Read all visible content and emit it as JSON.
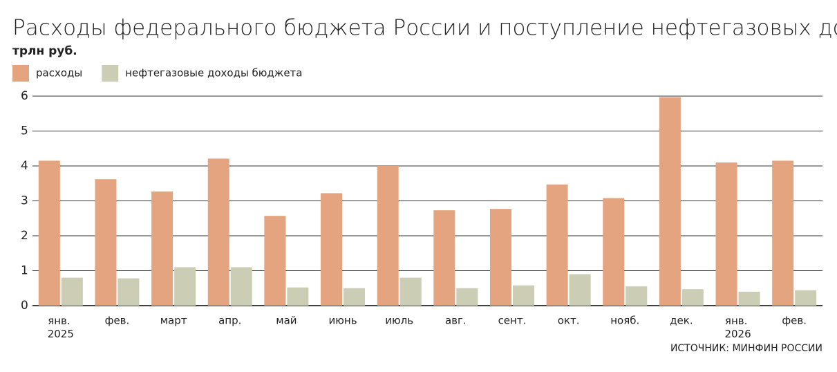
{
  "chart_data": {
    "type": "bar",
    "title": "Расходы федерального бюджета России и поступление нефтегазовых доходов",
    "subtitle": "трлн руб.",
    "source": "ИСТОЧНИК: МИНФИН РОССИИ",
    "categories": [
      "янв. 2025",
      "фев.",
      "март",
      "апр.",
      "май",
      "июнь",
      "июль",
      "авг.",
      "сент.",
      "окт.",
      "нояб.",
      "дек.",
      "янв. 2026",
      "фев."
    ],
    "series": [
      {
        "name": "расходы",
        "color": "#e3a47f",
        "values": [
          4.15,
          3.62,
          3.27,
          4.21,
          2.57,
          3.22,
          4.0,
          2.73,
          2.77,
          3.47,
          3.08,
          5.97,
          4.1,
          4.15
        ]
      },
      {
        "name": "нефтегазовые доходы бюджета",
        "color": "#cbcdb5",
        "values": [
          0.8,
          0.78,
          1.1,
          1.1,
          0.52,
          0.5,
          0.8,
          0.5,
          0.58,
          0.9,
          0.55,
          0.47,
          0.4,
          0.44
        ]
      }
    ],
    "ylim": [
      0,
      6
    ],
    "yticks": [
      0,
      1,
      2,
      3,
      4,
      5,
      6
    ],
    "grid": true
  }
}
